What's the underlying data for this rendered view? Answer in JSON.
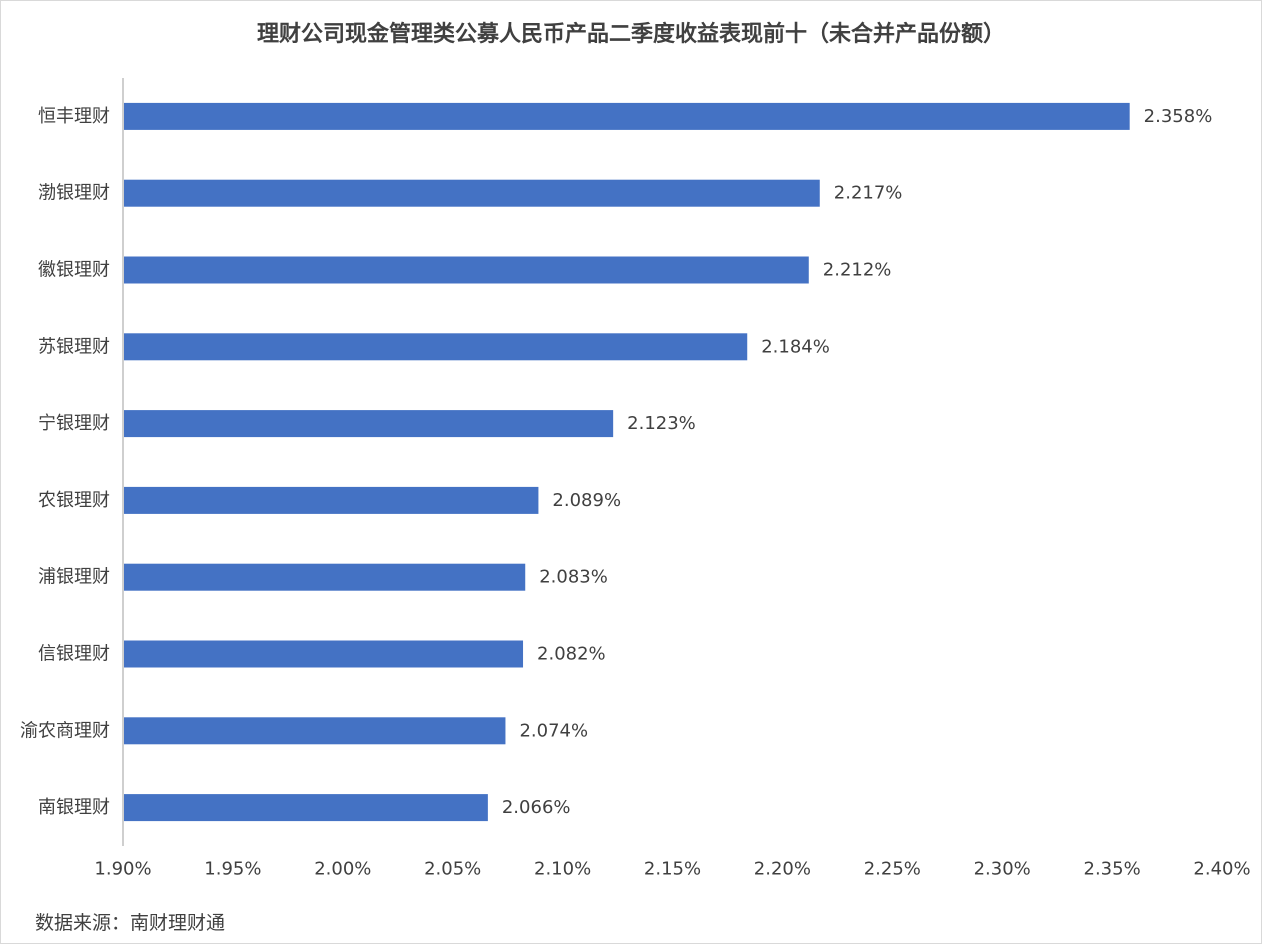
{
  "colors": {
    "bar": "#4472C4",
    "axis": "#bfbfbf",
    "text": "#404040"
  },
  "chart_data": {
    "type": "bar",
    "orientation": "horizontal",
    "title": "理财公司现金管理类公募人民币产品二季度收益表现前十（未合并产品份额）",
    "categories": [
      "恒丰理财",
      "渤银理财",
      "徽银理财",
      "苏银理财",
      "宁银理财",
      "农银理财",
      "浦银理财",
      "信银理财",
      "渝农商理财",
      "南银理财"
    ],
    "values": [
      2.358,
      2.217,
      2.212,
      2.184,
      2.123,
      2.089,
      2.083,
      2.082,
      2.074,
      2.066
    ],
    "value_labels": [
      "2.358%",
      "2.217%",
      "2.212%",
      "2.184%",
      "2.123%",
      "2.089%",
      "2.083%",
      "2.082%",
      "2.074%",
      "2.066%"
    ],
    "xlim": [
      1.9,
      2.4
    ],
    "xticks": [
      1.9,
      1.95,
      2.0,
      2.05,
      2.1,
      2.15,
      2.2,
      2.25,
      2.3,
      2.35,
      2.4
    ],
    "xtick_labels": [
      "1.90%",
      "1.95%",
      "2.00%",
      "2.05%",
      "2.10%",
      "2.15%",
      "2.20%",
      "2.25%",
      "2.30%",
      "2.35%",
      "2.40%"
    ],
    "grid": false,
    "legend": "none"
  },
  "source": "数据来源：南财理财通"
}
